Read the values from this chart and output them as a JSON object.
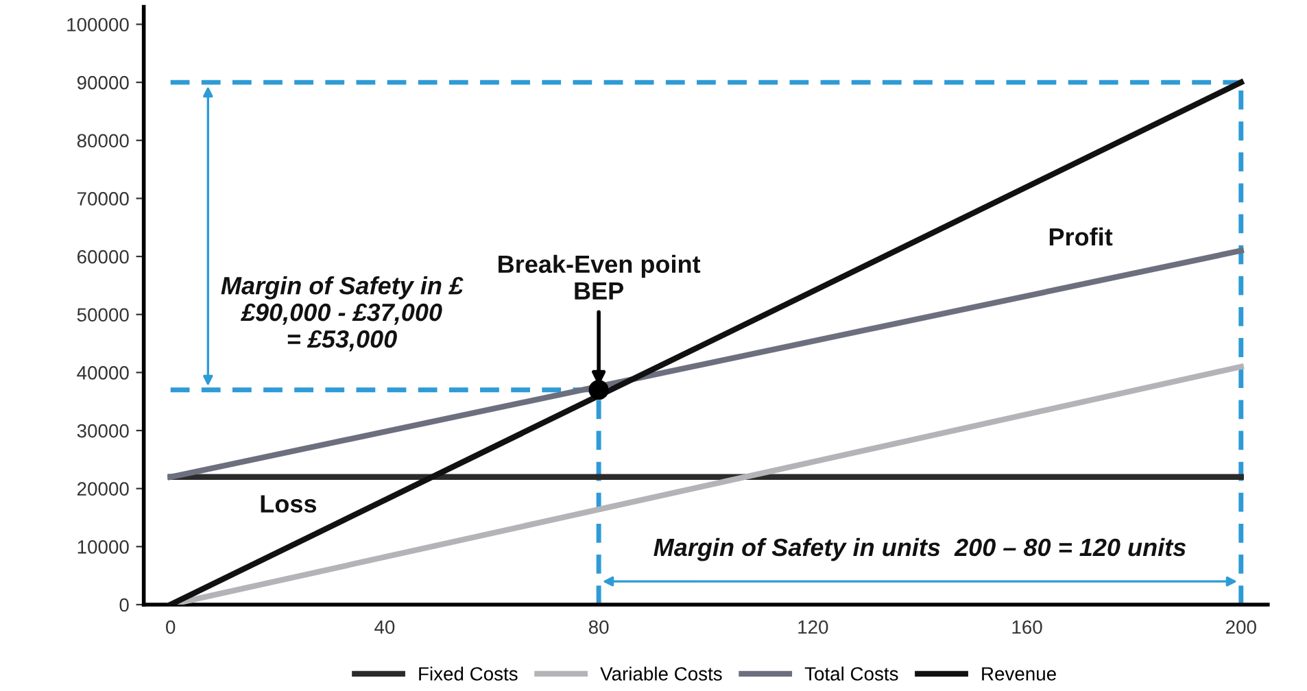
{
  "chart_data": {
    "type": "line",
    "xlim": [
      -5,
      205
    ],
    "ylim": [
      0,
      103000
    ],
    "xticks": [
      0,
      40,
      80,
      120,
      160,
      200
    ],
    "yticks": [
      0,
      10000,
      20000,
      30000,
      40000,
      50000,
      60000,
      70000,
      80000,
      90000,
      100000
    ],
    "grid": false,
    "legend": "bottom",
    "marker": "none",
    "series": [
      {
        "name": "Fixed Costs",
        "color": "#2b2b2b",
        "x": [
          0,
          200
        ],
        "values": [
          22000,
          22000
        ]
      },
      {
        "name": "Variable Costs",
        "color": "#b4b4b8",
        "x": [
          0,
          200
        ],
        "values": [
          0,
          41000
        ]
      },
      {
        "name": "Total Costs",
        "color": "#6c6f7e",
        "x": [
          0,
          200
        ],
        "values": [
          22000,
          61000
        ]
      },
      {
        "name": "Revenue",
        "color": "#111111",
        "x": [
          0,
          200
        ],
        "values": [
          0,
          90000
        ]
      },
      {
        "color": "#2e9bd6",
        "line_style": "dashed",
        "x": [
          0,
          200
        ],
        "values": [
          90000,
          90000
        ]
      },
      {
        "color": "#2e9bd6",
        "line_style": "dashed",
        "x": [
          200,
          200
        ],
        "values": [
          0,
          90000
        ]
      },
      {
        "color": "#2e9bd6",
        "line_style": "dashed",
        "x": [
          0,
          80
        ],
        "values": [
          37000,
          37000
        ]
      },
      {
        "color": "#2e9bd6",
        "line_style": "dashed",
        "x": [
          80,
          80
        ],
        "values": [
          0,
          37000
        ]
      },
      {
        "type": "scatter",
        "color": "#000000",
        "marker": "circle",
        "x": [
          80
        ],
        "values": [
          37000
        ]
      }
    ],
    "annotations": [
      {
        "text": "Break-Even point\nBEP",
        "x": 80,
        "y": 37000
      },
      "Profit",
      "Loss",
      "Margin of Safety in £\n£90,000 - £37,000\n= £53,000",
      "Margin of Safety in units  200 – 80 = 120 units"
    ]
  }
}
